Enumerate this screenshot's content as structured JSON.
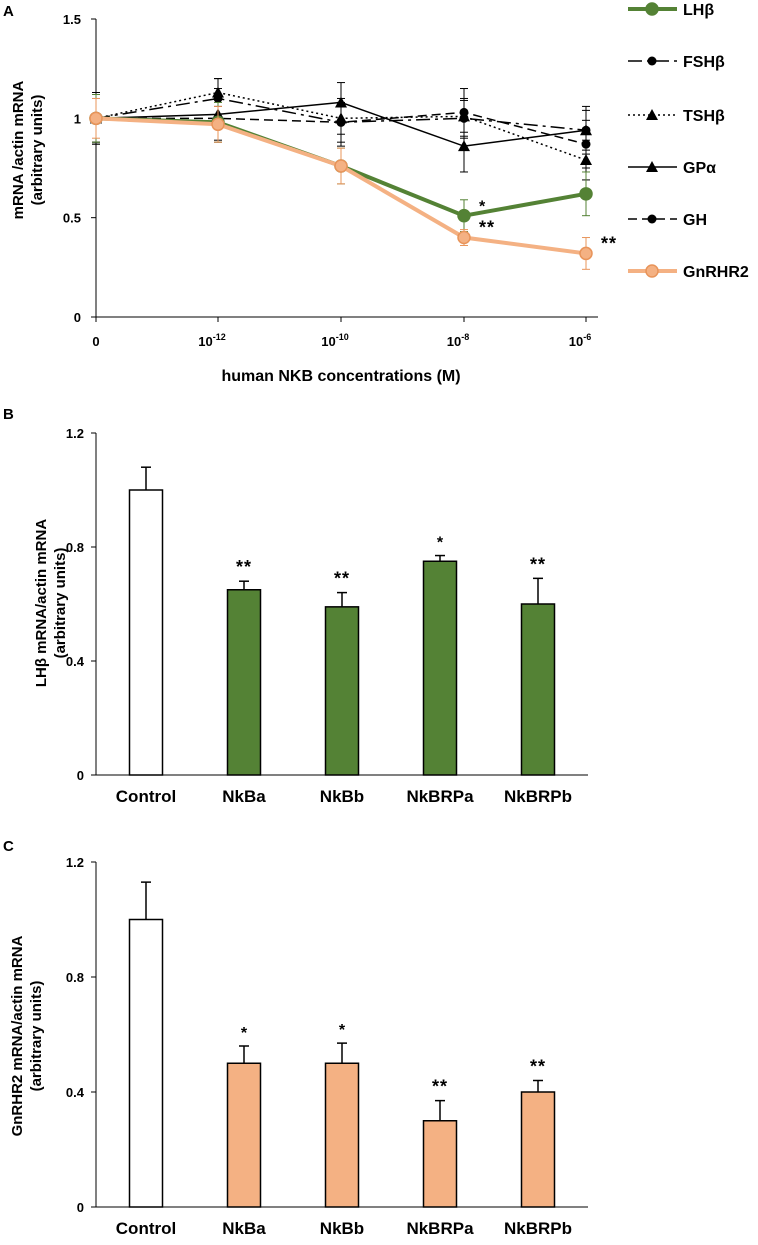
{
  "chart_data": [
    {
      "panel": "A",
      "type": "line",
      "xlabel": "human  NKB  concentrations (M)",
      "ylabel_line1": "mRNA /actin mRNA",
      "ylabel_line2": "(arbitrary units)",
      "categories": [
        {
          "base": "0",
          "exp": ""
        },
        {
          "base": "10",
          "exp": "-12"
        },
        {
          "base": "10",
          "exp": "-10"
        },
        {
          "base": "10",
          "exp": "-8"
        },
        {
          "base": "10",
          "exp": "-6"
        }
      ],
      "ylim": [
        0,
        1.5
      ],
      "yticks": [
        "0",
        "0.5",
        "1",
        "1.5"
      ],
      "ytick_values": [
        0,
        0.5,
        1,
        1.5
      ],
      "series": [
        {
          "name": "LHβ",
          "color": "#548235",
          "marker": "circle",
          "style": "solid-thick",
          "values": [
            1.0,
            0.98,
            0.76,
            0.51,
            0.62
          ],
          "errors": [
            0.12,
            0.1,
            0.09,
            0.08,
            0.11
          ],
          "sig": [
            "",
            "",
            "",
            "*",
            ""
          ]
        },
        {
          "name": "FSHβ",
          "color": "#000000",
          "marker": "dot",
          "style": "dashdot",
          "values": [
            1.0,
            1.1,
            0.98,
            1.0,
            0.94
          ],
          "errors": [
            0.12,
            0.1,
            0.1,
            0.1,
            0.1
          ],
          "sig": [
            "",
            "",
            "",
            "",
            ""
          ]
        },
        {
          "name": "TSHβ",
          "color": "#000000",
          "marker": "triangle",
          "style": "dotted",
          "values": [
            1.0,
            1.13,
            1.0,
            1.01,
            0.79
          ],
          "errors": [
            0.13,
            0.07,
            0.08,
            0.08,
            0.1
          ],
          "sig": [
            "",
            "",
            "",
            "",
            ""
          ]
        },
        {
          "name": "GPα",
          "color": "#000000",
          "marker": "triangle",
          "style": "solid",
          "values": [
            1.0,
            1.02,
            1.08,
            0.86,
            0.94
          ],
          "errors": [
            0.13,
            0.13,
            0.1,
            0.13,
            0.12
          ],
          "sig": [
            "",
            "",
            "",
            "",
            ""
          ]
        },
        {
          "name": "GH",
          "color": "#000000",
          "marker": "dot",
          "style": "dashed",
          "values": [
            1.0,
            1.0,
            0.98,
            1.03,
            0.87
          ],
          "errors": [
            0.12,
            0.12,
            0.12,
            0.12,
            0.12
          ],
          "sig": [
            "",
            "",
            "",
            "",
            ""
          ]
        },
        {
          "name": "GnRHR2",
          "color": "#F4B183",
          "edge": "#E8945A",
          "marker": "circle",
          "style": "solid-thick",
          "values": [
            1.0,
            0.97,
            0.76,
            0.4,
            0.32
          ],
          "errors": [
            0.1,
            0.09,
            0.09,
            0.04,
            0.08
          ],
          "sig": [
            "",
            "",
            "",
            "**",
            "**"
          ]
        }
      ]
    },
    {
      "panel": "B",
      "type": "bar",
      "ylabel_line1": "LHβ mRNA/actin mRNA",
      "ylabel_line2": "(arbitrary units)",
      "categories": [
        "Control",
        "NkBa",
        "NkBb",
        "NkBRPa",
        "NkBRPb"
      ],
      "values": [
        1.0,
        0.65,
        0.59,
        0.75,
        0.6
      ],
      "errors": [
        0.08,
        0.03,
        0.05,
        0.02,
        0.09
      ],
      "sig": [
        "",
        "**",
        "**",
        "*",
        "**"
      ],
      "colors": [
        "#FFFFFF",
        "#548235",
        "#548235",
        "#548235",
        "#548235"
      ],
      "ylim": [
        0,
        1.2
      ],
      "yticks": [
        "0",
        "0.4",
        "0.8",
        "1.2"
      ],
      "ytick_values": [
        0,
        0.4,
        0.8,
        1.2
      ]
    },
    {
      "panel": "C",
      "type": "bar",
      "ylabel_line1": "GnRHR2 mRNA/actin mRNA",
      "ylabel_line2": "(arbitrary units)",
      "categories": [
        "Control",
        "NkBa",
        "NkBb",
        "NkBRPa",
        "NkBRPb"
      ],
      "values": [
        1.0,
        0.5,
        0.5,
        0.3,
        0.4
      ],
      "errors": [
        0.13,
        0.06,
        0.07,
        0.07,
        0.04
      ],
      "sig": [
        "",
        "*",
        "*",
        "**",
        "**"
      ],
      "colors": [
        "#FFFFFF",
        "#F4B183",
        "#F4B183",
        "#F4B183",
        "#F4B183"
      ],
      "ylim": [
        0,
        1.2
      ],
      "yticks": [
        "0",
        "0.4",
        "0.8",
        "1.2"
      ],
      "ytick_values": [
        0,
        0.4,
        0.8,
        1.2
      ]
    }
  ]
}
